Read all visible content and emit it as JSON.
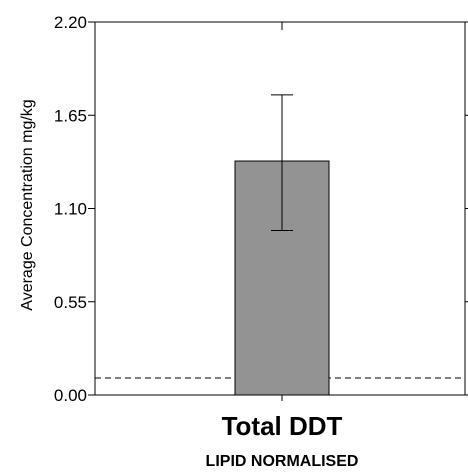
{
  "chart_data": {
    "type": "bar",
    "categories": [
      "Total DDT"
    ],
    "subtitle": "LIPID NORMALISED",
    "ylabel": "Average Concentration mg/kg",
    "xlabel": "",
    "ylim": [
      0,
      2.2
    ],
    "yticks": [
      "0.00",
      "0.55",
      "1.10",
      "1.65",
      "2.20"
    ],
    "values": [
      1.38
    ],
    "error_low": [
      0.97
    ],
    "error_high": [
      1.77
    ],
    "reference_line": 0.1,
    "grid": false,
    "colors": {
      "bar": "#939393",
      "axis": "#000000",
      "reference": "#000000"
    }
  }
}
